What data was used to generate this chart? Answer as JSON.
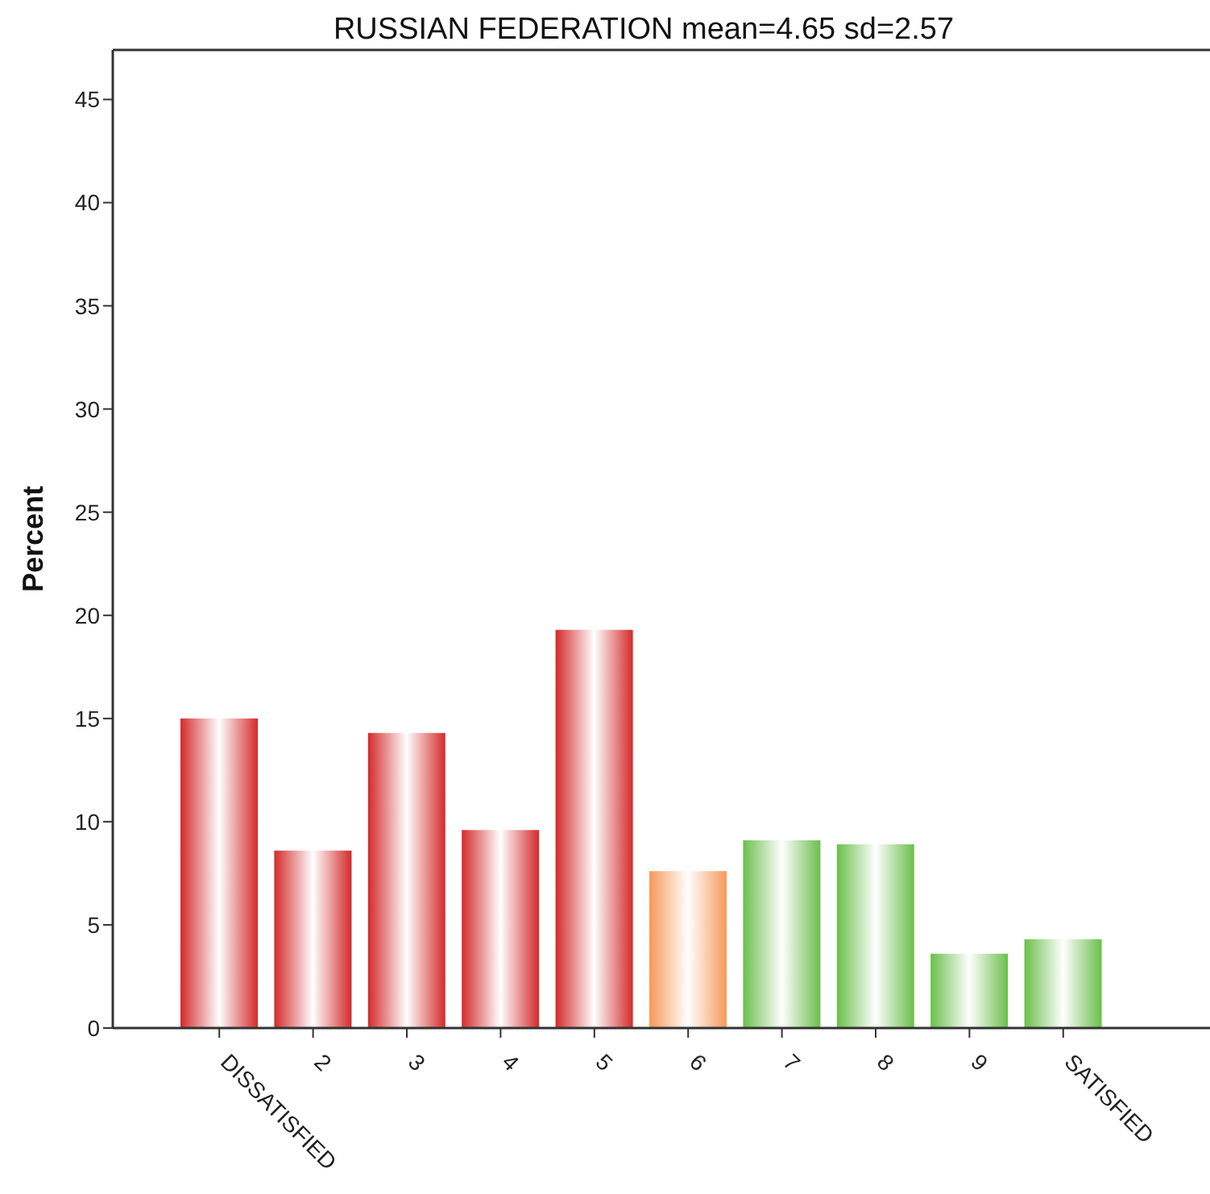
{
  "chart_data": {
    "type": "bar",
    "title": "RUSSIAN FEDERATION mean=4.65 sd=2.57",
    "ylabel": "Percent",
    "categories": [
      "DISSATISFIED",
      "2",
      "3",
      "4",
      "5",
      "6",
      "7",
      "8",
      "9",
      "SATISFIED"
    ],
    "values": [
      15.0,
      8.6,
      14.3,
      9.6,
      19.3,
      7.6,
      9.1,
      8.9,
      3.6,
      4.3
    ],
    "colors": [
      "#d42a2a",
      "#d42a2a",
      "#d42a2a",
      "#d42a2a",
      "#d42a2a",
      "#f7985a",
      "#6abf4b",
      "#6abf4b",
      "#6abf4b",
      "#6abf4b"
    ],
    "ylim": [
      0,
      47.4
    ],
    "yticks": [
      0,
      5,
      10,
      15,
      20,
      25,
      30,
      35,
      40,
      45
    ],
    "grid": false
  }
}
